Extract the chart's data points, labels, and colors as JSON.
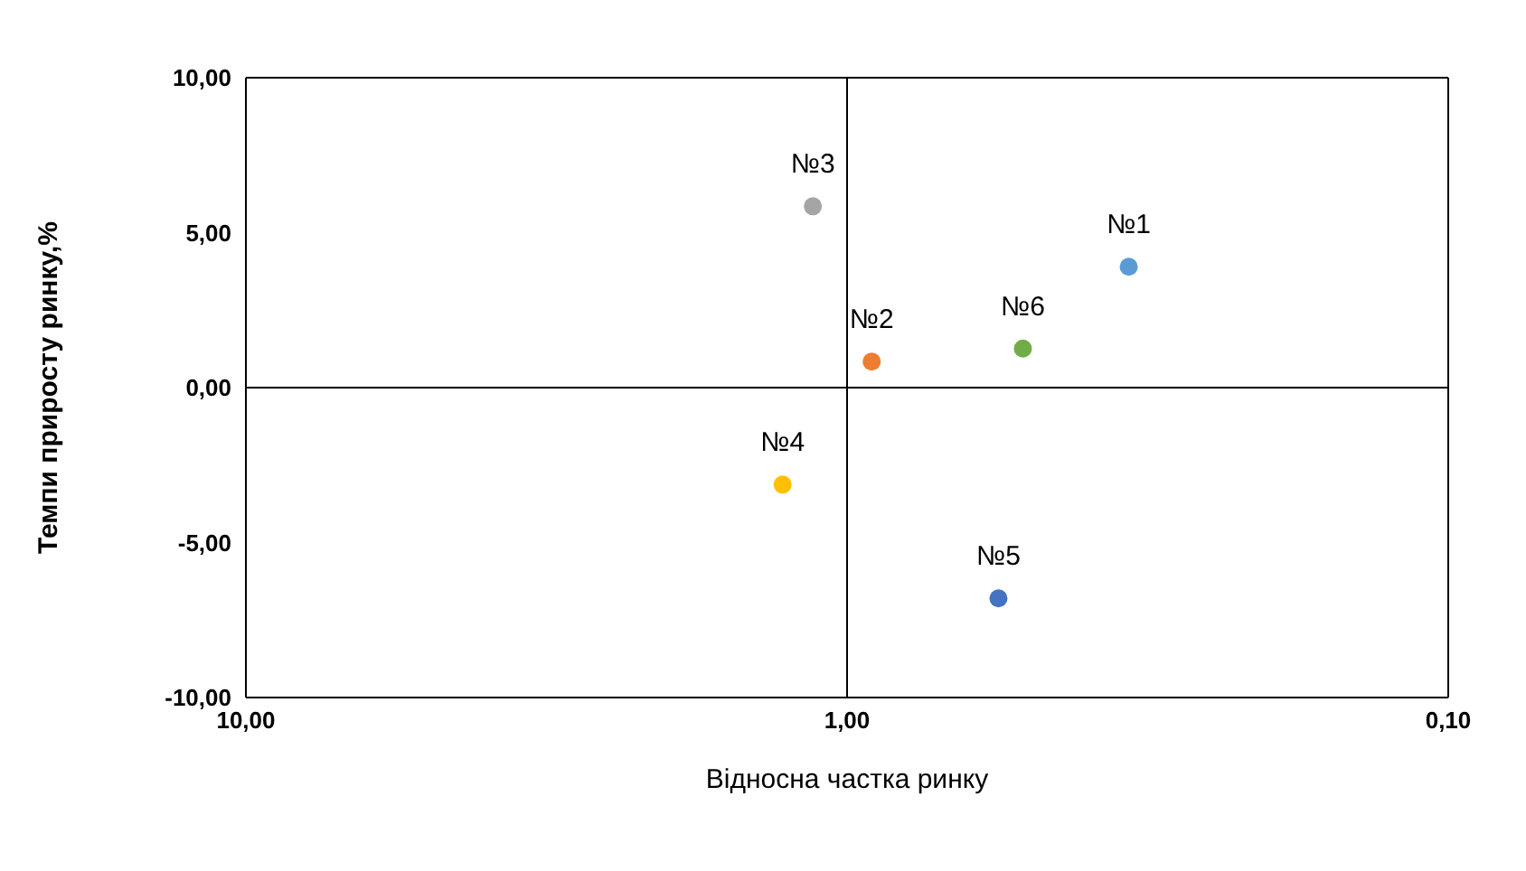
{
  "chart_data": {
    "type": "scatter",
    "xlabel": "Відносна частка ринку",
    "ylabel": "Темпи приросту ринку,%",
    "log": "x",
    "xlim": [
      10,
      0.1
    ],
    "xticks": [
      {
        "value": 10,
        "label": "10,00"
      },
      {
        "value": 1,
        "label": "1,00"
      },
      {
        "value": 0.1,
        "label": "0,10"
      }
    ],
    "ylim": [
      -10,
      10
    ],
    "yticks": [
      {
        "value": -10,
        "label": "-10,00"
      },
      {
        "value": -5,
        "label": "-5,00"
      },
      {
        "value": 0,
        "label": "0,00"
      },
      {
        "value": 5,
        "label": "5,00"
      },
      {
        "value": 10,
        "label": "10,00"
      }
    ],
    "legend": false,
    "marker": "circle",
    "ref_lines": [
      {
        "axis": "x",
        "value": 1,
        "color": "#000000"
      },
      {
        "axis": "y",
        "value": 0,
        "color": "#000000"
      }
    ],
    "series": [
      {
        "name": "№1",
        "color": "#5b9bd5",
        "x": [
          0.34
        ],
        "values": [
          3.9
        ]
      },
      {
        "name": "№2",
        "color": "#ed7d31",
        "x": [
          0.91
        ],
        "values": [
          0.84
        ]
      },
      {
        "name": "№3",
        "color": "#a5a5a5",
        "x": [
          1.14
        ],
        "values": [
          5.85
        ]
      },
      {
        "name": "№4",
        "color": "#ffc000",
        "x": [
          1.28
        ],
        "values": [
          -3.13
        ]
      },
      {
        "name": "№5",
        "color": "#4472c4",
        "x": [
          0.56
        ],
        "values": [
          -6.8
        ]
      },
      {
        "name": "№6",
        "color": "#70ad47",
        "x": [
          0.51
        ],
        "values": [
          1.26
        ]
      }
    ]
  }
}
